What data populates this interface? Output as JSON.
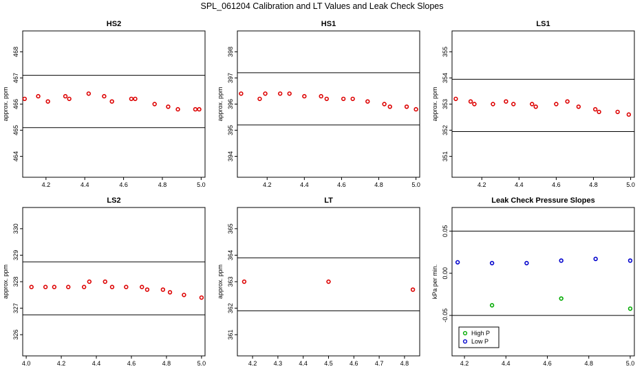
{
  "page": {
    "title": "SPL_061204  Calibration and LT Values and Leak Check Slopes"
  },
  "colors": {
    "points": "#dd0000",
    "high_p": "#00aa00",
    "low_p": "#0000cc",
    "lines": "#000000"
  },
  "chart_data": [
    {
      "type": "scatter",
      "title": "HS2",
      "ylabel": "approx. ppm",
      "xlim": [
        4.08,
        5.02
      ],
      "ylim": [
        463.2,
        468.8
      ],
      "xticks": [
        "4.2",
        "4.4",
        "4.6",
        "4.8",
        "5.0"
      ],
      "yticks": [
        "464",
        "465",
        "466",
        "467",
        "468"
      ],
      "hlines": [
        465.1,
        467.1
      ],
      "series": [
        {
          "x": [
            4.09,
            4.16,
            4.21,
            4.3,
            4.32,
            4.42,
            4.5,
            4.54,
            4.64,
            4.66,
            4.76,
            4.83,
            4.88,
            4.97,
            4.99
          ],
          "y": [
            466.2,
            466.3,
            466.1,
            466.3,
            466.2,
            466.4,
            466.3,
            466.1,
            466.2,
            466.2,
            466.0,
            465.9,
            465.8,
            465.8,
            465.8
          ]
        }
      ]
    },
    {
      "type": "scatter",
      "title": "HS1",
      "ylabel": "approx. ppm",
      "xlim": [
        4.04,
        5.02
      ],
      "ylim": [
        393.2,
        398.8
      ],
      "xticks": [
        "4.2",
        "4.4",
        "4.6",
        "4.8",
        "5.0"
      ],
      "yticks": [
        "394",
        "395",
        "396",
        "397",
        "398"
      ],
      "hlines": [
        395.2,
        397.2
      ],
      "series": [
        {
          "x": [
            4.06,
            4.16,
            4.19,
            4.27,
            4.32,
            4.4,
            4.49,
            4.52,
            4.61,
            4.66,
            4.74,
            4.83,
            4.86,
            4.95,
            5.0
          ],
          "y": [
            396.4,
            396.2,
            396.4,
            396.4,
            396.4,
            396.3,
            396.3,
            396.2,
            396.2,
            396.2,
            396.1,
            396.0,
            395.9,
            395.9,
            395.8
          ]
        }
      ]
    },
    {
      "type": "scatter",
      "title": "LS1",
      "ylabel": "approx. ppm",
      "xlim": [
        4.04,
        5.02
      ],
      "ylim": [
        350.2,
        355.8
      ],
      "xticks": [
        "4.2",
        "4.4",
        "4.6",
        "4.8",
        "5.0"
      ],
      "yticks": [
        "351",
        "352",
        "353",
        "354",
        "355"
      ],
      "hlines": [
        351.95,
        353.95
      ],
      "series": [
        {
          "x": [
            4.06,
            4.14,
            4.16,
            4.26,
            4.33,
            4.37,
            4.47,
            4.49,
            4.6,
            4.66,
            4.72,
            4.81,
            4.83,
            4.93,
            4.99
          ],
          "y": [
            353.2,
            353.1,
            353.0,
            353.0,
            353.1,
            353.0,
            353.0,
            352.9,
            353.0,
            353.1,
            352.9,
            352.8,
            352.7,
            352.7,
            352.6
          ]
        }
      ]
    },
    {
      "type": "scatter",
      "title": "LS2",
      "ylabel": "approx. ppm",
      "xlim": [
        3.98,
        5.02
      ],
      "ylim": [
        325.2,
        330.8
      ],
      "xticks": [
        "4.0",
        "4.2",
        "4.4",
        "4.6",
        "4.8",
        "5.0"
      ],
      "yticks": [
        "326",
        "327",
        "328",
        "329",
        "330"
      ],
      "hlines": [
        326.75,
        328.75
      ],
      "series": [
        {
          "x": [
            4.03,
            4.11,
            4.16,
            4.24,
            4.33,
            4.36,
            4.45,
            4.49,
            4.57,
            4.66,
            4.69,
            4.78,
            4.82,
            4.9,
            5.0
          ],
          "y": [
            327.8,
            327.8,
            327.8,
            327.8,
            327.8,
            328.0,
            328.0,
            327.8,
            327.8,
            327.8,
            327.7,
            327.7,
            327.6,
            327.5,
            327.4
          ]
        }
      ]
    },
    {
      "type": "scatter",
      "title": "LT",
      "ylabel": "approx. ppm",
      "xlim": [
        4.14,
        4.86
      ],
      "ylim": [
        360.2,
        365.8
      ],
      "xticks": [
        "4.2",
        "4.3",
        "4.4",
        "4.5",
        "4.6",
        "4.7",
        "4.8"
      ],
      "yticks": [
        "361",
        "362",
        "363",
        "364",
        "365"
      ],
      "hlines": [
        361.9,
        363.9
      ],
      "series": [
        {
          "x": [
            4.167,
            4.5,
            4.833
          ],
          "y": [
            363.0,
            363.0,
            362.7
          ]
        }
      ]
    },
    {
      "type": "scatter",
      "title": "Leak Check Pressure Slopes",
      "ylabel": "kPa per min.",
      "xlim": [
        4.14,
        5.02
      ],
      "ylim": [
        -0.098,
        0.078
      ],
      "xticks": [
        "4.2",
        "4.4",
        "4.6",
        "4.8",
        "5.0"
      ],
      "yticks": [
        "-0.05",
        "0.00",
        "0.05"
      ],
      "hlines": [
        -0.05,
        0.05
      ],
      "legend_position": "bottom-left",
      "series": [
        {
          "name": "High P",
          "x": [
            4.333,
            4.667,
            5.0
          ],
          "y": [
            -0.038,
            -0.03,
            -0.042
          ]
        },
        {
          "name": "Low P",
          "x": [
            4.167,
            4.333,
            4.5,
            4.667,
            4.833,
            5.0
          ],
          "y": [
            0.013,
            0.012,
            0.012,
            0.015,
            0.017,
            0.015
          ]
        }
      ]
    }
  ]
}
